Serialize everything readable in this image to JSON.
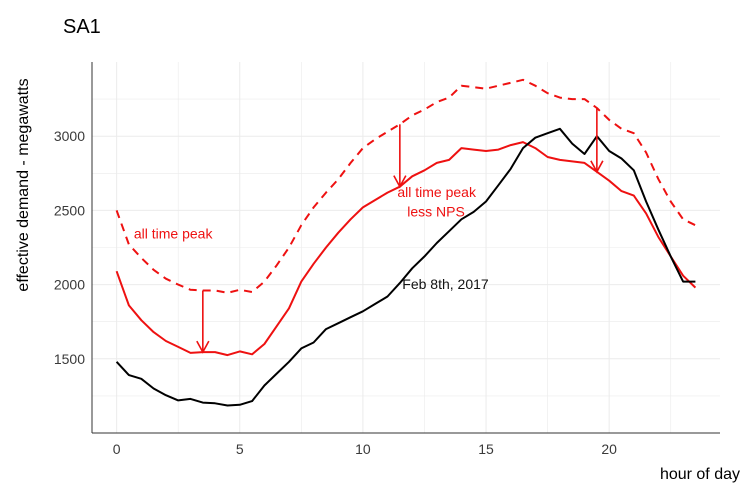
{
  "chart_data": {
    "type": "line",
    "title": "SA1",
    "xlabel": "hour of day",
    "ylabel": "effective demand - megawatts",
    "xlim": [
      -1,
      24.5
    ],
    "ylim": [
      1000,
      3500
    ],
    "x_ticks": [
      0,
      5,
      10,
      15,
      20
    ],
    "y_ticks": [
      1500,
      2000,
      2500,
      3000
    ],
    "grid": true,
    "colors": {
      "all_time_peak": "#ee1111",
      "less_nps": "#ee1111",
      "feb8": "#000000",
      "arrow": "#ee1111",
      "grid": "#ebebeb",
      "axis": "#333333"
    },
    "x": [
      0,
      0.5,
      1,
      1.5,
      2,
      2.5,
      3,
      3.5,
      4,
      4.5,
      5,
      5.5,
      6,
      6.5,
      7,
      7.5,
      8,
      8.5,
      9,
      9.5,
      10,
      10.5,
      11,
      11.5,
      12,
      12.5,
      13,
      13.5,
      14,
      14.5,
      15,
      15.5,
      16,
      16.5,
      17,
      17.5,
      18,
      18.5,
      19,
      19.5,
      20,
      20.5,
      21,
      21.5,
      22,
      22.5,
      23,
      23.5
    ],
    "series": [
      {
        "key": "all_time_peak",
        "style": "dashed",
        "values": [
          2500,
          2270,
          2180,
          2100,
          2040,
          2000,
          1965,
          1960,
          1960,
          1945,
          1965,
          1950,
          2020,
          2130,
          2250,
          2400,
          2520,
          2620,
          2710,
          2820,
          2920,
          2980,
          3030,
          3080,
          3140,
          3180,
          3230,
          3260,
          3340,
          3330,
          3320,
          3340,
          3360,
          3380,
          3340,
          3290,
          3260,
          3250,
          3250,
          3190,
          3110,
          3050,
          3020,
          2890,
          2710,
          2560,
          2440,
          2400
        ]
      },
      {
        "key": "less_nps",
        "style": "solid",
        "values": [
          2090,
          1860,
          1760,
          1680,
          1620,
          1580,
          1540,
          1545,
          1545,
          1525,
          1550,
          1530,
          1600,
          1720,
          1840,
          2020,
          2140,
          2250,
          2350,
          2440,
          2520,
          2570,
          2620,
          2660,
          2730,
          2770,
          2820,
          2840,
          2920,
          2910,
          2900,
          2910,
          2940,
          2960,
          2920,
          2860,
          2840,
          2830,
          2820,
          2760,
          2700,
          2630,
          2600,
          2480,
          2320,
          2190,
          2060,
          1980
        ]
      },
      {
        "key": "feb8",
        "style": "solid",
        "values": [
          1480,
          1390,
          1365,
          1300,
          1255,
          1220,
          1230,
          1205,
          1200,
          1185,
          1190,
          1215,
          1320,
          1400,
          1480,
          1570,
          1610,
          1700,
          1740,
          1780,
          1820,
          1870,
          1920,
          2010,
          2110,
          2190,
          2280,
          2360,
          2440,
          2490,
          2560,
          2670,
          2780,
          2920,
          2990,
          3020,
          3050,
          2950,
          2880,
          3000,
          2900,
          2850,
          2770,
          2560,
          2370,
          2190,
          2020,
          2020
        ]
      }
    ],
    "arrows": [
      {
        "x": 3.5,
        "from": 1960,
        "to": 1545
      },
      {
        "x": 11.5,
        "from": 3080,
        "to": 2660
      },
      {
        "x": 19.5,
        "from": 3190,
        "to": 2760
      }
    ],
    "annotations": [
      {
        "text": "all time peak",
        "x": 0.7,
        "y": 2310,
        "color": "red"
      },
      {
        "text": "all time peak",
        "x": 11.4,
        "y": 2590,
        "color": "red"
      },
      {
        "text": "less NPS",
        "x": 11.8,
        "y": 2460,
        "color": "red"
      },
      {
        "text": "Feb 8th, 2017",
        "x": 11.6,
        "y": 1970,
        "color": "black"
      }
    ]
  }
}
